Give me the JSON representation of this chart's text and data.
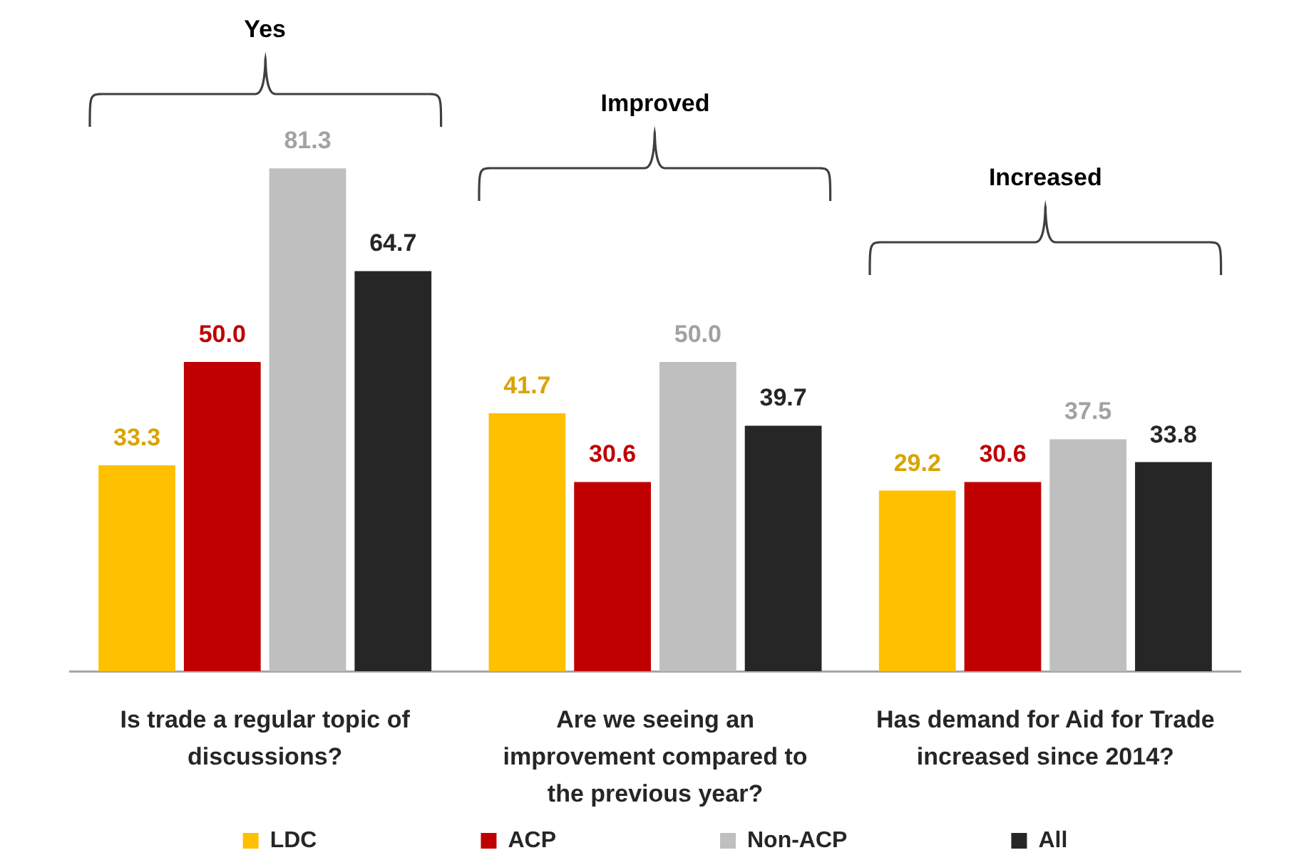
{
  "chart_data": {
    "type": "bar",
    "categories": [
      "Is trade a regular topic of discussions?",
      "Are we seeing an improvement compared to the previous year?",
      "Has demand for Aid for Trade increased since 2014?"
    ],
    "series": [
      {
        "name": "LDC",
        "color": "#ffc000",
        "values": [
          33.3,
          41.7,
          29.2
        ],
        "value_labels": [
          "33.3",
          "41.7",
          "29.2"
        ]
      },
      {
        "name": "ACP",
        "color": "#c00000",
        "values": [
          50.0,
          30.6,
          30.6
        ],
        "value_labels": [
          "50.0",
          "30.6",
          "30.6"
        ]
      },
      {
        "name": "Non-ACP",
        "color": "#bfbfbf",
        "values": [
          81.3,
          50.0,
          37.5
        ],
        "value_labels": [
          "81.3",
          "50.0",
          "37.5"
        ]
      },
      {
        "name": "All",
        "color": "#262626",
        "values": [
          64.7,
          39.7,
          33.8
        ],
        "value_labels": [
          "64.7",
          "39.7",
          "33.8"
        ]
      }
    ],
    "annotations": [
      "Yes",
      "Improved",
      "Increased"
    ],
    "legend": "bottom",
    "tick_labels": "x"
  }
}
